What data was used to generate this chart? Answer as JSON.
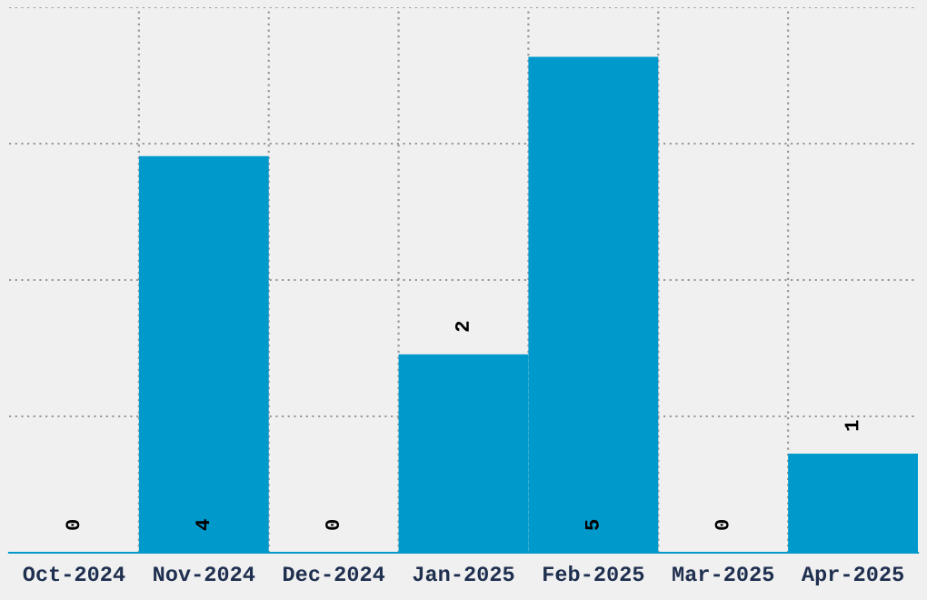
{
  "chart_data": {
    "type": "bar",
    "categories": [
      "Oct-2024",
      "Nov-2024",
      "Dec-2024",
      "Jan-2025",
      "Feb-2025",
      "Mar-2025",
      "Apr-2025"
    ],
    "values": [
      0,
      4,
      0,
      2,
      5,
      0,
      1
    ],
    "color": "#0099cc",
    "ylim": [
      0,
      5.5
    ],
    "yticks": [
      {
        "value": 0,
        "label": null
      },
      {
        "value": 1.375,
        "label": null
      },
      {
        "value": 2.75,
        "label": null
      },
      {
        "value": 4.125,
        "label": null
      },
      {
        "value": 5.5,
        "label": null
      }
    ],
    "tick_labels": "x",
    "grid": true,
    "data_labels": true
  }
}
